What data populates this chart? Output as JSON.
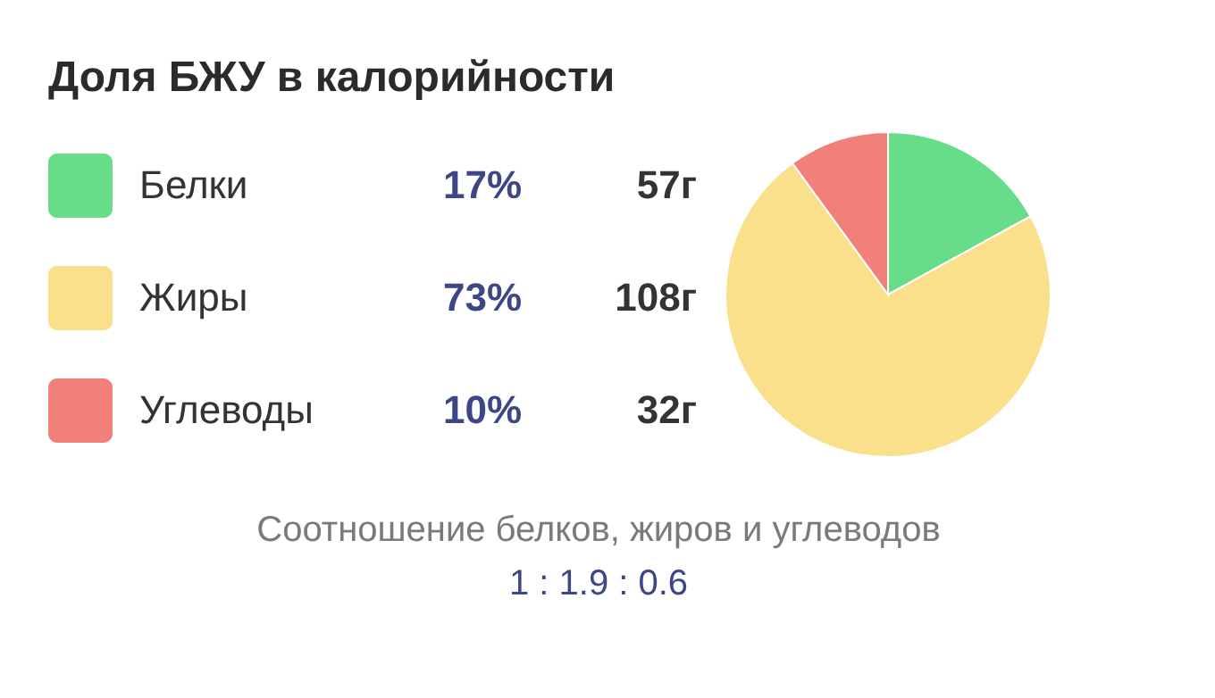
{
  "chart_data": {
    "type": "pie",
    "title": "Доля БЖУ в калорийности",
    "categories": [
      "Белки",
      "Жиры",
      "Углеводы"
    ],
    "values": [
      17,
      73,
      10
    ],
    "colors": [
      "#67dc89",
      "#fae08a",
      "#f08079"
    ],
    "value_labels": [
      "17%",
      "73%",
      "10%"
    ],
    "legend": "left",
    "annotations": [
      "57г",
      "108г",
      "32г",
      "Соотношение белков, жиров и углеводов",
      "1 : 1.9 : 0.6"
    ]
  }
}
